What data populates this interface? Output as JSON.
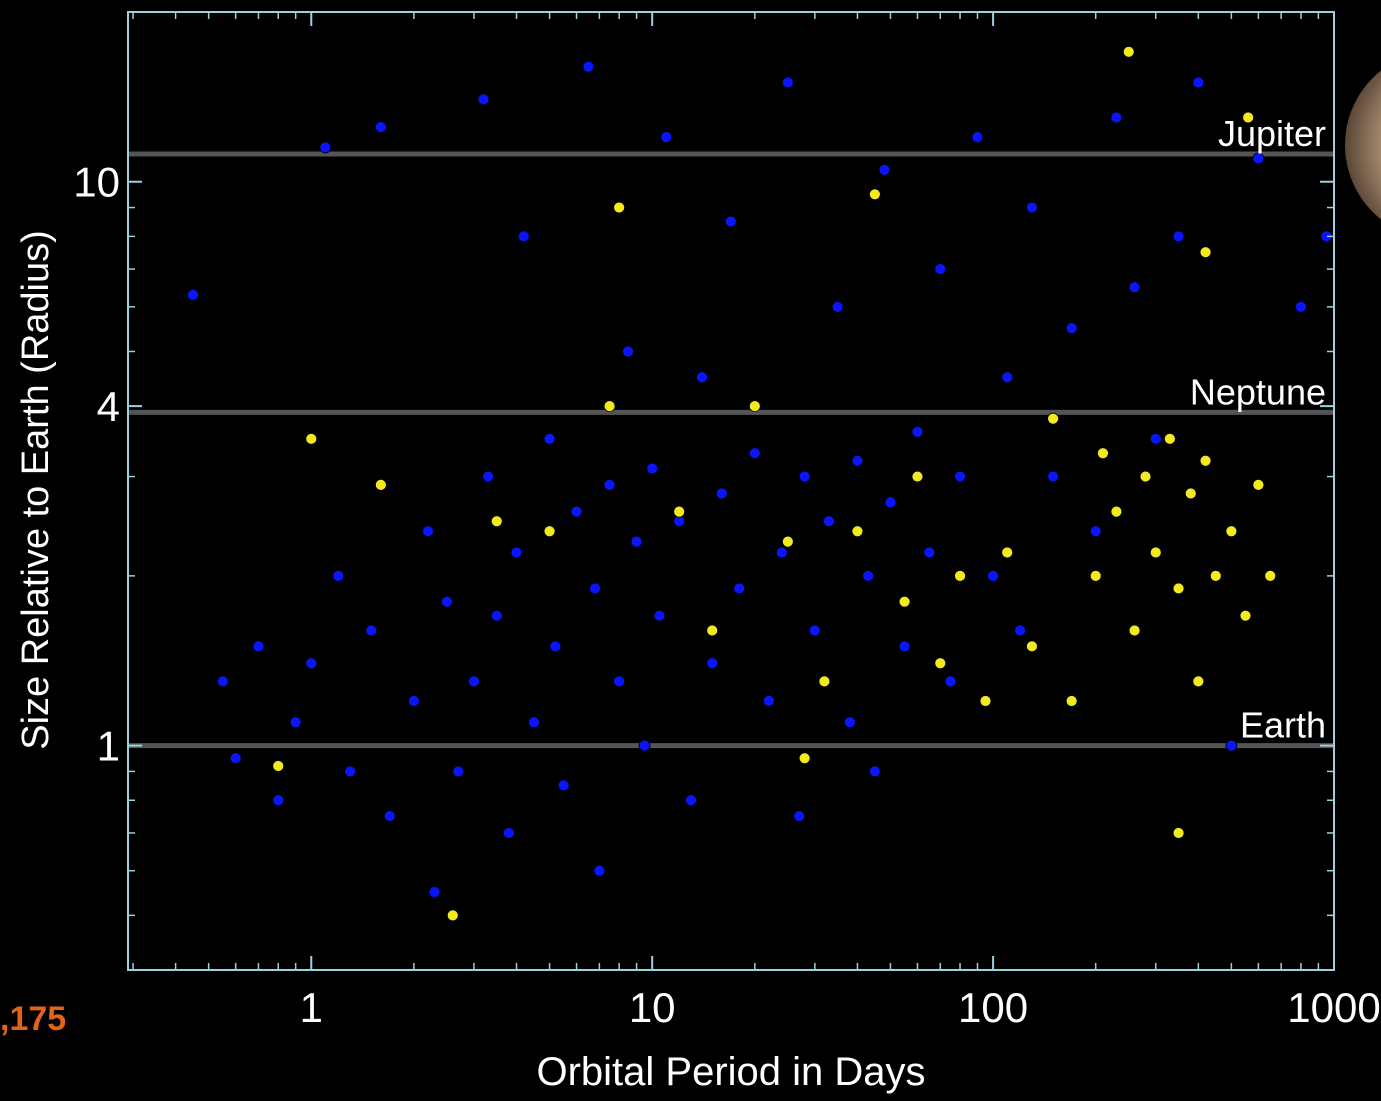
{
  "chart_data": {
    "type": "scatter",
    "x_label": "Orbital Period in Days",
    "y_label": "Size Relative to Earth (Radius)",
    "x_log": true,
    "y_log": true,
    "xlim": [
      0.29,
      1000
    ],
    "ylim": [
      0.4,
      20
    ],
    "xticks": [
      1,
      10,
      100,
      1000
    ],
    "yticks": [
      1,
      4,
      10
    ],
    "xminorticks": [
      0.3,
      0.4,
      0.5,
      0.6,
      0.7,
      0.8,
      0.9,
      2,
      3,
      4,
      5,
      6,
      7,
      8,
      9,
      20,
      30,
      40,
      50,
      60,
      70,
      80,
      90,
      200,
      300,
      400,
      500,
      600,
      700,
      800,
      900
    ],
    "yminorticks": [
      0.5,
      0.6,
      0.7,
      0.8,
      0.9,
      2,
      3,
      5,
      6,
      7,
      8,
      9,
      20
    ],
    "reference_lines": [
      {
        "value": 11.2,
        "label": "Jupiter"
      },
      {
        "value": 3.9,
        "label": "Neptune"
      },
      {
        "value": 1,
        "label": "Earth"
      }
    ],
    "annotation": ",175",
    "series": [
      {
        "color": "#0a14ff",
        "x": [
          0.45,
          0.55,
          0.6,
          0.7,
          0.8,
          0.9,
          1.0,
          1.1,
          1.2,
          1.3,
          1.5,
          1.6,
          1.7,
          2.0,
          2.2,
          2.3,
          2.5,
          2.7,
          3.0,
          3.2,
          3.3,
          3.5,
          3.8,
          4.0,
          4.2,
          4.5,
          5.0,
          5.2,
          5.5,
          6.0,
          6.5,
          6.8,
          7.0,
          7.5,
          8.0,
          8.5,
          9.0,
          9.5,
          10,
          10.5,
          11,
          12,
          13,
          14,
          15,
          16,
          17,
          18,
          20,
          22,
          24,
          25,
          27,
          28,
          30,
          33,
          35,
          38,
          40,
          43,
          45,
          48,
          50,
          55,
          60,
          65,
          70,
          75,
          80,
          90,
          100,
          110,
          120,
          130,
          150,
          170,
          200,
          230,
          260,
          300,
          350,
          400,
          500,
          600,
          800,
          950
        ],
        "y": [
          6.3,
          1.3,
          0.95,
          1.5,
          0.8,
          1.1,
          1.4,
          11.5,
          2.0,
          0.9,
          1.6,
          12.5,
          0.75,
          1.2,
          2.4,
          0.55,
          1.8,
          0.9,
          1.3,
          14,
          3.0,
          1.7,
          0.7,
          2.2,
          8.0,
          1.1,
          3.5,
          1.5,
          0.85,
          2.6,
          16,
          1.9,
          0.6,
          2.9,
          1.3,
          5.0,
          2.3,
          1.0,
          3.1,
          1.7,
          12,
          2.5,
          0.8,
          4.5,
          1.4,
          2.8,
          8.5,
          1.9,
          3.3,
          1.2,
          2.2,
          15,
          0.75,
          3.0,
          1.6,
          2.5,
          6.0,
          1.1,
          3.2,
          2.0,
          0.9,
          10.5,
          2.7,
          1.5,
          3.6,
          2.2,
          7,
          1.3,
          3.0,
          12,
          2.0,
          4.5,
          1.6,
          9,
          3.0,
          5.5,
          2.4,
          13,
          6.5,
          3.5,
          8,
          15,
          1.0,
          11,
          6.0,
          8.0
        ]
      },
      {
        "color": "#f2ea1c",
        "x": [
          0.8,
          1.0,
          1.6,
          2.6,
          3.5,
          5.0,
          7.5,
          8.0,
          12,
          15,
          20,
          25,
          28,
          32,
          40,
          45,
          55,
          60,
          70,
          80,
          95,
          110,
          130,
          150,
          170,
          200,
          210,
          230,
          260,
          280,
          300,
          330,
          350,
          380,
          400,
          420,
          450,
          500,
          550,
          600,
          650,
          350,
          420,
          560,
          250
        ],
        "y": [
          0.92,
          3.5,
          2.9,
          0.5,
          2.5,
          2.4,
          4.0,
          9.0,
          2.6,
          1.6,
          4.0,
          2.3,
          0.95,
          1.3,
          2.4,
          9.5,
          1.8,
          3.0,
          1.4,
          2.0,
          1.2,
          2.2,
          1.5,
          3.8,
          1.2,
          2.0,
          3.3,
          2.6,
          1.6,
          3.0,
          2.2,
          3.5,
          1.9,
          2.8,
          1.3,
          3.2,
          2.0,
          2.4,
          1.7,
          2.9,
          2.0,
          0.7,
          7.5,
          13,
          17
        ]
      }
    ]
  }
}
